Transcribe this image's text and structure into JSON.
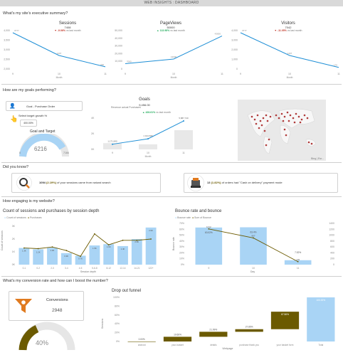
{
  "title": "WEB INSIGHTS : DASHBOARD",
  "sections": {
    "summary": "What's my site's executive summary?",
    "goals": "How are my goals performing?",
    "know": "Did you know?",
    "engaging": "How engaging is my website?",
    "conversion": "What's my conversion rate and how can I boost the number?"
  },
  "kpis": [
    {
      "label": "Sessions",
      "value": "7408",
      "delta": "-9.06%",
      "vs": "vs last month",
      "dir": "down"
    },
    {
      "label": "PageViews",
      "value": "50000",
      "delta": "113.98%",
      "vs": "vs last month",
      "dir": "up"
    },
    {
      "label": "Visitors",
      "value": "7042",
      "delta": "-11.05%",
      "vs": "vs last month",
      "dir": "down"
    }
  ],
  "goals": {
    "dropdown": "Goal - Purchase Order",
    "target_label": "Select target growth %",
    "target_value": "400.00%",
    "gauge_title": "Goal and Target",
    "gauge_value": "6216",
    "gauge_min": "0",
    "gauge_max": "7166",
    "chart_title": "Goals",
    "chart_value": "9,456.00",
    "chart_delta": "426.61%",
    "chart_vs": "vs last month",
    "legend": "Revenue  actual Purchases",
    "map_footer": "Bing | Esr..."
  },
  "know": [
    {
      "count": "1094",
      "pct": "(2.19%)",
      "text": "of your sessions came from natural search"
    },
    {
      "count": "13",
      "pct": "(1.82%)",
      "text": "of orders had \"Cash on delivery\" payment mode"
    }
  ],
  "engagement": {
    "left_title": "Count of sessions and purchases by session depth",
    "left_legend": [
      "Count of sessions",
      "Purchases"
    ],
    "left_ylabel": "Count of sessions",
    "left_xlabel": "Session depth",
    "right_title": "Bounce rate and bounce",
    "right_legend": [
      "Bounce rate",
      "Sum of Bounce"
    ],
    "right_ylabel": "Bounce rate",
    "right_xlabel": "Day"
  },
  "conversion": {
    "label": "Conversions",
    "value": "2948",
    "gauge": "40%",
    "funnel_title": "Drop out funnel",
    "funnel_ylabel": "Sessions",
    "funnel_xlabel": "Webpage"
  },
  "chart_data": [
    {
      "type": "line",
      "name": "sessions",
      "categories": [
        "9",
        "10",
        "11"
      ],
      "values": [
        3777,
        1407,
        230
      ],
      "ylim": [
        0,
        4000
      ],
      "yticks": [
        "2,000",
        "2,500",
        "3,000",
        "3,500",
        "4,000"
      ],
      "xlabel": "Month"
    },
    {
      "type": "line",
      "name": "pageviews",
      "categories": [
        "9",
        "10",
        "11"
      ],
      "values": [
        7000,
        13000,
        43000
      ],
      "ylim": [
        0,
        50000
      ],
      "yticks": [
        "0",
        "10,000",
        "20,000",
        "30,000",
        "40,000",
        "50,000"
      ],
      "xlabel": "Month"
    },
    {
      "type": "line",
      "name": "visitors",
      "categories": [
        "9",
        "10",
        "11"
      ],
      "values": [
        3777,
        1407,
        170
      ],
      "ylim": [
        0,
        4000
      ],
      "yticks": [
        "0",
        "1,000",
        "2,000",
        "3,000",
        "4,000"
      ],
      "xlabel": "Month"
    },
    {
      "type": "bar",
      "name": "goals",
      "categories": [
        "9",
        "10",
        "11"
      ],
      "values": [
        1300,
        1050,
        4000
      ],
      "line": [
        1080,
        2200,
        5900
      ],
      "labels": [
        "1,171,840",
        "1 104 680",
        "5,887,740"
      ],
      "yticks": [
        "0K",
        "2K",
        "4K"
      ],
      "xlabel": "Month"
    },
    {
      "type": "bar",
      "name": "sessions_by_depth",
      "categories": [
        "0-1",
        "0-2",
        "2-3",
        "3-4",
        "4-5",
        "5-6-8",
        "8-12",
        "12-14",
        "14-21",
        "122+"
      ],
      "values": [
        1300,
        1200,
        1320,
        900,
        700,
        1500,
        1600,
        1450,
        2000,
        2900
      ],
      "line": [
        1300,
        1250,
        1380,
        1100,
        650,
        2400,
        1550,
        1900,
        1900,
        2000
      ],
      "ylim": [
        0,
        3000
      ],
      "yticks": [
        "0K",
        "1K",
        "2K",
        "3K"
      ]
    },
    {
      "type": "bar",
      "name": "bounce",
      "categories": [
        "9",
        "10",
        "11"
      ],
      "values": [
        63.02,
        63.4,
        7.52
      ],
      "line": [
        1212,
        907,
        102
      ],
      "labels": [
        "63.02%",
        "63.4%",
        "7.52%"
      ],
      "ylim": [
        0,
        70
      ],
      "yticks": [
        "0%",
        "10%",
        "20%",
        "30%",
        "40%",
        "50%",
        "60%",
        "70%"
      ],
      "y2ticks": [
        "0",
        "200",
        "400",
        "600",
        "800",
        "1000",
        "1200",
        "1400"
      ]
    },
    {
      "type": "bar",
      "name": "funnel",
      "categories": [
        "android",
        "your-basket",
        "details",
        "purchase thank you",
        "your basket form",
        "Total"
      ],
      "values": [
        0,
        10.66,
        21.99,
        27.85,
        67.56,
        100
      ],
      "labels": [
        "0.00%",
        "10.66%",
        "21.99%",
        "27.85%",
        "67.56%",
        "100.00%"
      ],
      "yticks": [
        "0%",
        "20%",
        "40%",
        "60%",
        "80%",
        "100%"
      ]
    }
  ]
}
